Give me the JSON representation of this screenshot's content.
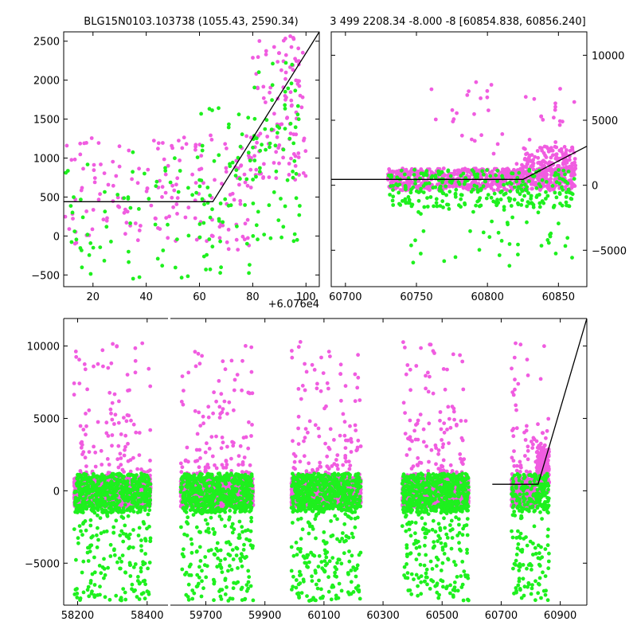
{
  "colors": {
    "magenta": "#f05ce0",
    "green": "#1ef01e",
    "model": "#000000"
  },
  "chart_data": [
    {
      "type": "scatter",
      "title": "BLG15N0103.103738 (1055.43, 2590.34)",
      "xlabel": "",
      "ylabel": "",
      "xlim": [
        9,
        105
      ],
      "ylim": [
        -650,
        2620
      ],
      "x_offset_label": "+6.076e4",
      "xticks": [
        20,
        40,
        60,
        80,
        100
      ],
      "yticks": [
        -500,
        0,
        500,
        1000,
        1500,
        2000,
        2500
      ],
      "legend": "none",
      "model": [
        [
          9,
          440
        ],
        [
          65,
          440
        ],
        [
          105,
          2620
        ]
      ],
      "series": [
        {
          "name": "magenta",
          "color": "#f05ce0",
          "clusters": [
            [
              [
                9,
                65
              ],
              [
                -100,
                1300
              ],
              130
            ],
            [
              [
                65,
                80
              ],
              [
                -200,
                1300
              ],
              50
            ],
            [
              [
                80,
                100
              ],
              [
                700,
                2600
              ],
              110
            ]
          ]
        },
        {
          "name": "green",
          "color": "#1ef01e",
          "clusters": [
            [
              [
                9,
                65
              ],
              [
                -550,
                1100
              ],
              70
            ],
            [
              [
                60,
                80
              ],
              [
                -500,
                1700
              ],
              50
            ],
            [
              [
                80,
                98
              ],
              [
                -100,
                2300
              ],
              70
            ]
          ]
        }
      ]
    },
    {
      "type": "scatter",
      "title": "3 499 2208.34 -8.000 -8 [60854.838, 60856.240]",
      "xlabel": "",
      "ylabel": "",
      "xlim": [
        60690,
        60870
      ],
      "ylim": [
        -7800,
        11800
      ],
      "xticks": [
        60700,
        60750,
        60800,
        60850
      ],
      "yticks": [
        -5000,
        0,
        5000,
        10000
      ],
      "yaxis_side": "right",
      "legend": "none",
      "model": [
        [
          60690,
          450
        ],
        [
          60825,
          450
        ],
        [
          60870,
          3000
        ]
      ],
      "series": [
        {
          "name": "magenta",
          "color": "#f05ce0",
          "clusters": [
            [
              [
                60730,
                60862
              ],
              [
                -400,
                1300
              ],
              700
            ],
            [
              [
                60760,
                60862
              ],
              [
                1000,
                8000
              ],
              45
            ],
            [
              [
                60825,
                60862
              ],
              [
                800,
                3000
              ],
              150
            ]
          ]
        },
        {
          "name": "green",
          "color": "#1ef01e",
          "clusters": [
            [
              [
                60730,
                60862
              ],
              [
                -1700,
                1200
              ],
              280
            ],
            [
              [
                60745,
                60862
              ],
              [
                -6200,
                -1500
              ],
              40
            ]
          ]
        }
      ]
    },
    {
      "type": "scatter",
      "title": "",
      "xlabel": "",
      "ylabel": "",
      "ylim": [
        -7900,
        11900
      ],
      "yticks": [
        -5000,
        0,
        5000,
        10000
      ],
      "xticks_text": [
        "58200",
        "58400",
        "59700",
        "59900",
        "60100",
        "60300",
        "60500",
        "60700",
        "60900"
      ],
      "legend": "none",
      "segments": [
        {
          "xlim": [
            58160,
            58460
          ],
          "xticks": [
            58200,
            58400
          ]
        },
        {
          "xlim": [
            59580,
            60990
          ],
          "xticks": [
            59700,
            59900,
            60100,
            60300,
            60500,
            60700,
            60900
          ]
        }
      ],
      "model": [
        [
          60670,
          450
        ],
        [
          60825,
          450
        ],
        [
          60990,
          11900
        ]
      ],
      "seasons": [
        {
          "x": [
            58190,
            58410
          ]
        },
        {
          "x": [
            59615,
            59860
          ]
        },
        {
          "x": [
            59990,
            60225
          ]
        },
        {
          "x": [
            60365,
            60590
          ]
        },
        {
          "x": [
            60735,
            60862
          ]
        }
      ],
      "series": [
        {
          "name": "magenta",
          "color": "#f05ce0",
          "core": [
            -1100,
            900
          ],
          "tail": [
            1000,
            10300
          ]
        },
        {
          "name": "green",
          "color": "#1ef01e",
          "core": [
            -1500,
            1200
          ],
          "tail": [
            -7600,
            -1500
          ]
        }
      ]
    }
  ]
}
